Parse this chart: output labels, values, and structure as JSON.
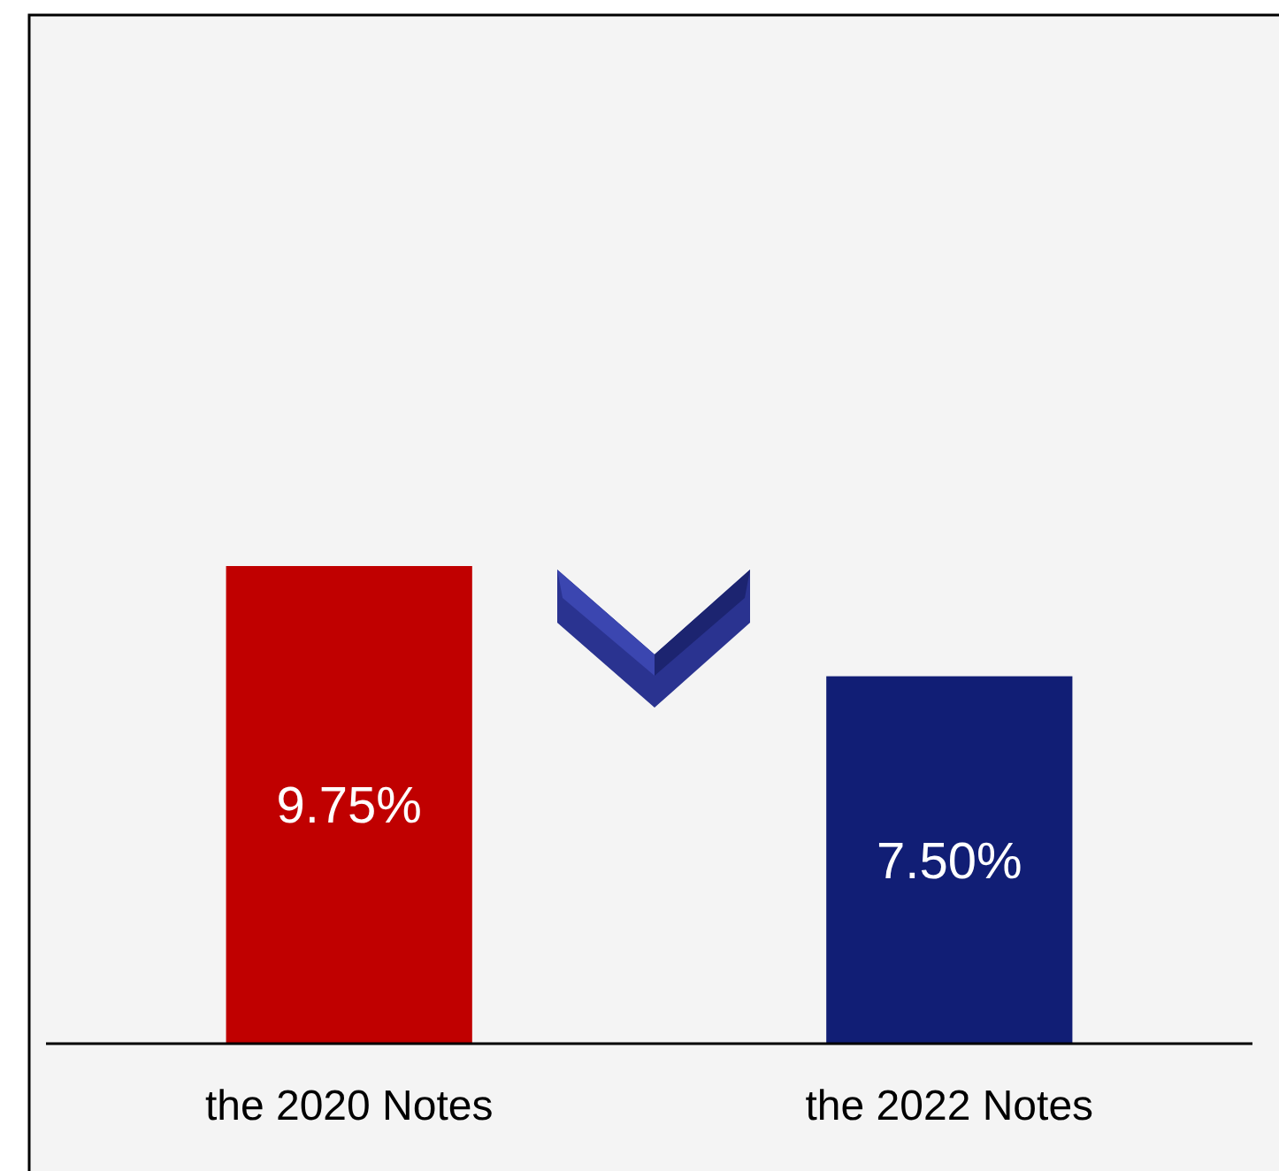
{
  "chart_data": {
    "type": "bar",
    "categories": [
      "the 2020 Notes",
      "the 2022 Notes"
    ],
    "values": [
      9.75,
      7.5
    ],
    "colors": [
      "#c00000",
      "#111e75"
    ],
    "value_labels": [
      "9.75%",
      "7.50%"
    ]
  }
}
